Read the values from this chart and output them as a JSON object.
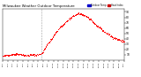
{
  "title_line1": "Milwaukee Weather Outdoor Temperature",
  "title_fontsize": 2.8,
  "bg_color": "#ffffff",
  "plot_bg_color": "#ffffff",
  "legend_labels": [
    "Outdoor Temp",
    "Heat Index"
  ],
  "legend_colors": [
    "#0000cc",
    "#cc0000"
  ],
  "dot_color": "#ff0000",
  "vline_x": 460,
  "ylim": [
    0,
    95
  ],
  "xlim": [
    0,
    1440
  ],
  "y_ticks": [
    10,
    20,
    30,
    40,
    50,
    60,
    70,
    80,
    90
  ],
  "temp_points_x": [
    0,
    30,
    60,
    90,
    120,
    150,
    180,
    210,
    240,
    270,
    300,
    330,
    360,
    390,
    420,
    450,
    460,
    480,
    510,
    540,
    570,
    600,
    630,
    660,
    690,
    720,
    750,
    780,
    810,
    840,
    870,
    900,
    930,
    960,
    990,
    1020,
    1050,
    1080,
    1110,
    1140,
    1170,
    1200,
    1230,
    1260,
    1290,
    1320,
    1350,
    1380,
    1410,
    1440
  ],
  "temp_points_y": [
    8,
    9,
    10,
    10,
    11,
    11,
    12,
    11,
    10,
    9,
    9,
    10,
    10,
    10,
    11,
    12,
    13,
    18,
    25,
    32,
    38,
    45,
    52,
    58,
    63,
    67,
    72,
    76,
    80,
    83,
    85,
    87,
    86,
    84,
    82,
    78,
    74,
    70,
    65,
    62,
    58,
    54,
    50,
    47,
    44,
    42,
    40,
    38,
    36,
    35
  ]
}
